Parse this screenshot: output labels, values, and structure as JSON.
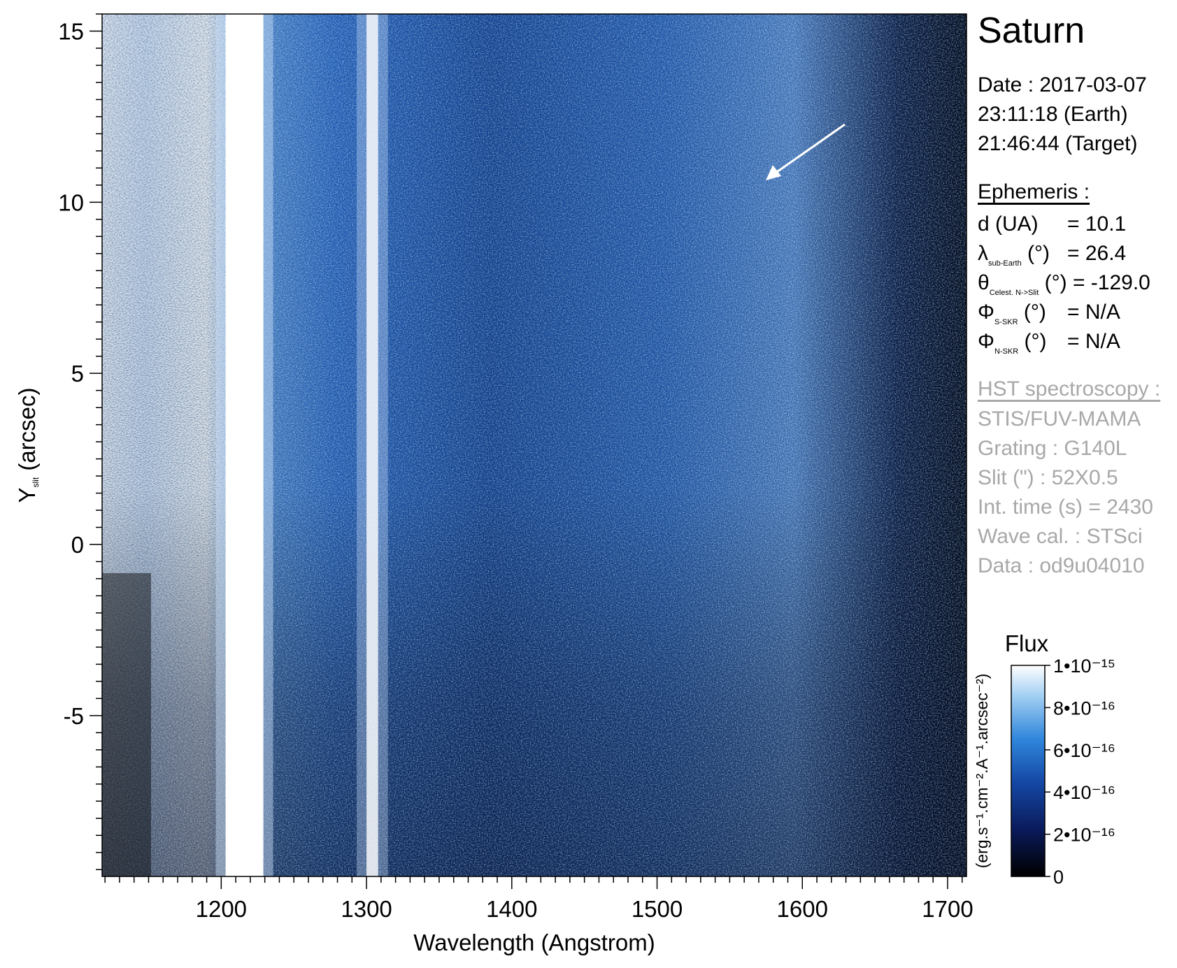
{
  "chart_data": {
    "type": "heatmap",
    "title": "",
    "xlabel": "Wavelength (Angstrom)",
    "ylabel_main": "Y",
    "ylabel_sub": "slit",
    "ylabel_units": "(arcsec)",
    "xlim": [
      1118,
      1713
    ],
    "ylim": [
      -9.7,
      15.5
    ],
    "x_ticks": [
      1200,
      1300,
      1400,
      1500,
      1600,
      1700
    ],
    "y_ticks": [
      -5,
      0,
      5,
      10,
      15
    ],
    "emission_bands": [
      {
        "center": 1216,
        "width": 26,
        "description": "saturated"
      },
      {
        "center": 1304,
        "width": 8,
        "description": "bright"
      }
    ],
    "colorbar": {
      "title": "Flux",
      "units": "(erg.s⁻¹.cm⁻².A⁻¹.arcsec⁻²)",
      "range": [
        0,
        1e-15
      ],
      "tick_labels": [
        "0",
        "2•10⁻¹⁶",
        "4•10⁻¹⁶",
        "6•10⁻¹⁶",
        "8•10⁻¹⁶",
        "1•10⁻¹⁵"
      ],
      "tick_values": [
        0,
        2e-16,
        4e-16,
        6e-16,
        8e-16,
        1e-15
      ],
      "colormap": [
        "#000000",
        "#0a1a5a",
        "#1549a6",
        "#2f86db",
        "#9fcdf2",
        "#ffffff"
      ]
    }
  },
  "panel": {
    "planet": "Saturn",
    "date_line": "Date : 2017-03-07",
    "time_earth": "23:11:18 (Earth)",
    "time_target": "21:46:44 (Target)",
    "ephemeris_header": "Ephemeris :",
    "ephemeris": [
      {
        "symbol": "d (UA)",
        "sub": "",
        "suffix": "",
        "value": "= 10.1"
      },
      {
        "symbol": "λ",
        "sub": "sub-Earth",
        "suffix": " (°)",
        "value": "= 26.4"
      },
      {
        "symbol": "θ",
        "sub": "Celest. N->Slit",
        "suffix": " (°)",
        "value": "= -129.0"
      },
      {
        "symbol": "Φ",
        "sub": "S-SKR",
        "suffix": " (°)",
        "value": "= N/A"
      },
      {
        "symbol": "Φ",
        "sub": "N-SKR",
        "suffix": " (°)",
        "value": "= N/A"
      }
    ],
    "hst_header": "HST spectroscopy :",
    "hst_lines": [
      "STIS/FUV-MAMA",
      "Grating : G140L",
      "Slit (\") : 52X0.5",
      "Int. time (s) = 2430",
      "Wave cal. : STSci",
      "Data : od9u04010"
    ]
  },
  "colors": {
    "gray_text": "#a8a8a8",
    "arrow": "#ffffff"
  }
}
